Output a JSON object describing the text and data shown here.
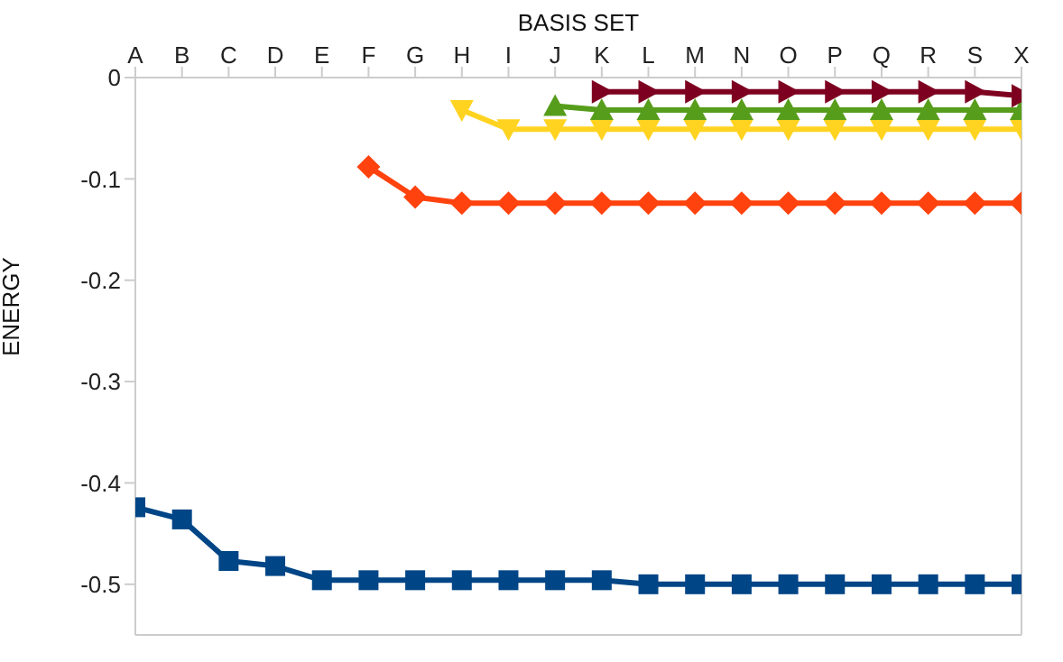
{
  "chart_data": {
    "type": "line",
    "xlabel": "BASIS SET",
    "ylabel": "ENERGY",
    "categories": [
      "A",
      "B",
      "C",
      "D",
      "E",
      "F",
      "G",
      "H",
      "I",
      "J",
      "K",
      "L",
      "M",
      "N",
      "O",
      "P",
      "Q",
      "R",
      "S",
      "X"
    ],
    "series": [
      {
        "color": "#004586",
        "marker": "square",
        "values": [
          -0.424,
          -0.436,
          -0.477,
          -0.482,
          -0.496,
          -0.496,
          -0.496,
          -0.496,
          -0.496,
          -0.496,
          -0.496,
          -0.5,
          -0.5,
          -0.5,
          -0.5,
          -0.5,
          -0.5,
          -0.5,
          -0.5,
          -0.5
        ]
      },
      {
        "color": "#ff420e",
        "marker": "diamond",
        "values": [
          null,
          null,
          null,
          null,
          null,
          -0.088,
          -0.118,
          -0.124,
          -0.124,
          -0.124,
          -0.124,
          -0.124,
          -0.124,
          -0.124,
          -0.124,
          -0.124,
          -0.124,
          -0.124,
          -0.124,
          -0.124
        ]
      },
      {
        "color": "#ffd320",
        "marker": "triangle-down",
        "values": [
          null,
          null,
          null,
          null,
          null,
          null,
          null,
          -0.032,
          -0.051,
          -0.051,
          -0.051,
          -0.051,
          -0.051,
          -0.051,
          -0.051,
          -0.051,
          -0.051,
          -0.051,
          -0.051,
          -0.051
        ]
      },
      {
        "color": "#579d1c",
        "marker": "triangle",
        "values": [
          null,
          null,
          null,
          null,
          null,
          null,
          null,
          null,
          null,
          -0.028,
          -0.032,
          -0.032,
          -0.032,
          -0.032,
          -0.032,
          -0.032,
          -0.032,
          -0.032,
          -0.032,
          -0.032
        ]
      },
      {
        "color": "#7e0021",
        "marker": "triangle-right",
        "values": [
          null,
          null,
          null,
          null,
          null,
          null,
          null,
          null,
          null,
          null,
          -0.014,
          -0.014,
          -0.014,
          -0.014,
          -0.014,
          -0.014,
          -0.014,
          -0.014,
          -0.014,
          -0.018
        ]
      }
    ],
    "ylim": [
      -0.55,
      0
    ],
    "yticks": [
      0,
      -0.1,
      -0.2,
      -0.3,
      -0.4,
      -0.5
    ],
    "grid": false,
    "legend": false,
    "line_style": "solid"
  }
}
